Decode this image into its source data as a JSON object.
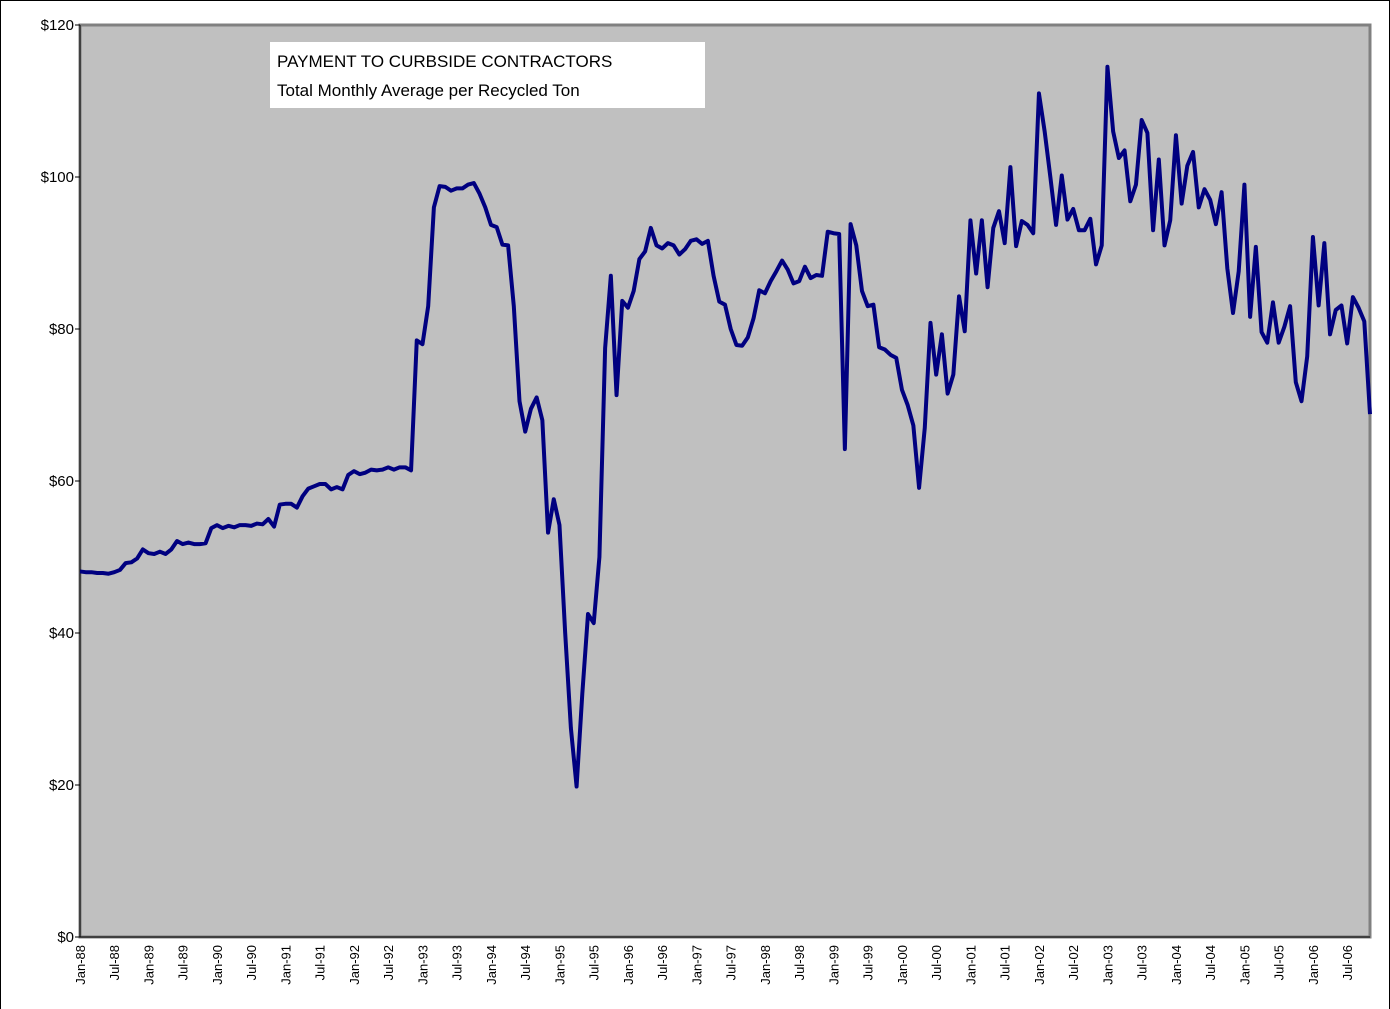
{
  "chart_data": {
    "type": "line",
    "title": "PAYMENT TO CURBSIDE CONTRACTORS",
    "subtitle": "Total Monthly Average per Recycled Ton",
    "categories": [
      "Jan-88",
      null,
      null,
      null,
      null,
      null,
      "Jul-88",
      null,
      null,
      null,
      null,
      null,
      "Jan-89",
      null,
      null,
      null,
      null,
      null,
      "Jul-89",
      null,
      null,
      null,
      null,
      null,
      "Jan-90",
      null,
      null,
      null,
      null,
      null,
      "Jul-90",
      null,
      null,
      null,
      null,
      null,
      "Jan-91",
      null,
      null,
      null,
      null,
      null,
      "Jul-91",
      null,
      null,
      null,
      null,
      null,
      "Jan-92",
      null,
      null,
      null,
      null,
      null,
      "Jul-92",
      null,
      null,
      null,
      null,
      null,
      "Jan-93",
      null,
      null,
      null,
      null,
      null,
      "Jul-93",
      null,
      null,
      null,
      null,
      null,
      "Jan-94",
      null,
      null,
      null,
      null,
      null,
      "Jul-94",
      null,
      null,
      null,
      null,
      null,
      "Jan-95",
      null,
      null,
      null,
      null,
      null,
      "Jul-95",
      null,
      null,
      null,
      null,
      null,
      "Jan-96",
      null,
      null,
      null,
      null,
      null,
      "Jul-96",
      null,
      null,
      null,
      null,
      null,
      "Jan-97",
      null,
      null,
      null,
      null,
      null,
      "Jul-97",
      null,
      null,
      null,
      null,
      null,
      "Jan-98",
      null,
      null,
      null,
      null,
      null,
      "Jul-98",
      null,
      null,
      null,
      null,
      null,
      "Jan-99",
      null,
      null,
      null,
      null,
      null,
      "Jul-99",
      null,
      null,
      null,
      null,
      null,
      "Jan-00",
      null,
      null,
      null,
      null,
      null,
      "Jul-00",
      null,
      null,
      null,
      null,
      null,
      "Jan-01",
      null,
      null,
      null,
      null,
      null,
      "Jul-01",
      null,
      null,
      null,
      null,
      null,
      "Jan-02",
      null,
      null,
      null,
      null,
      null,
      "Jul-02",
      null,
      null,
      null,
      null,
      null,
      "Jan-03",
      null,
      null,
      null,
      null,
      null,
      "Jul-03",
      null,
      null,
      null,
      null,
      null,
      "Jan-04",
      null,
      null,
      null,
      null,
      null,
      "Jul-04",
      null,
      null,
      null,
      null,
      null,
      "Jan-05",
      null,
      null,
      null,
      null,
      null,
      "Jul-05",
      null,
      null,
      null,
      null,
      null,
      "Jan-06",
      null,
      null,
      null,
      null,
      null,
      "Jul-06",
      null,
      null,
      null,
      null
    ],
    "values": [
      48.1,
      48,
      48,
      47.9,
      47.9,
      47.8,
      48,
      48.3,
      49.2,
      49.3,
      49.8,
      51,
      50.5,
      50.4,
      50.7,
      50.4,
      51,
      52.1,
      51.7,
      51.9,
      51.7,
      51.7,
      51.8,
      53.8,
      54.2,
      53.8,
      54.1,
      53.9,
      54.2,
      54.2,
      54.1,
      54.4,
      54.3,
      55,
      54,
      56.9,
      57,
      57,
      56.5,
      58,
      59,
      59.3,
      59.6,
      59.6,
      58.9,
      59.2,
      58.9,
      60.8,
      61.3,
      60.9,
      61.1,
      61.5,
      61.4,
      61.5,
      61.8,
      61.5,
      61.8,
      61.8,
      61.4,
      78.5,
      78,
      83,
      96,
      98.8,
      98.7,
      98.2,
      98.5,
      98.5,
      99,
      99.2,
      97.8,
      96,
      93.7,
      93.4,
      91.1,
      91,
      83,
      70.5,
      66.5,
      69.5,
      71,
      68,
      53.2,
      57.6,
      54.2,
      40,
      27.5,
      19.8,
      32,
      42.5,
      41.3,
      50,
      77.5,
      87,
      71.3,
      83.7,
      82.8,
      85,
      89.2,
      90.2,
      93.3,
      91,
      90.6,
      91.3,
      91,
      89.8,
      90.5,
      91.6,
      91.8,
      91.2,
      91.6,
      87,
      83.6,
      83.2,
      80,
      77.9,
      77.8,
      78.9,
      81.4,
      85.1,
      84.7,
      86.3,
      87.6,
      89,
      87.8,
      86,
      86.3,
      88.2,
      86.7,
      87.1,
      87,
      92.8,
      92.6,
      92.5,
      64.2,
      93.8,
      91,
      85,
      83,
      83.2,
      77.6,
      77.3,
      76.6,
      76.2,
      72,
      70,
      67.3,
      59.1,
      67,
      80.8,
      74,
      79.3,
      71.5,
      74,
      84.3,
      79.7,
      94.3,
      87.3,
      94.3,
      85.5,
      93.3,
      95.5,
      91.3,
      101.3,
      90.9,
      94.2,
      93.7,
      92.6,
      111,
      106,
      100,
      93.7,
      100.2,
      94.4,
      95.8,
      93,
      93,
      94.5,
      88.5,
      91,
      114.5,
      106,
      102.5,
      103.5,
      96.8,
      99,
      107.5,
      105.8,
      93,
      102.3,
      91,
      94.3,
      105.5,
      96.5,
      101.5,
      103.3,
      96,
      98.4,
      97,
      93.8,
      98,
      88,
      82.1,
      87.6,
      99,
      81.6,
      90.8,
      79.6,
      78.2,
      83.5,
      78.2,
      80.3,
      83,
      73,
      70.5,
      76.4,
      92.1,
      83.1,
      91.3,
      79.3,
      82.5,
      83.1,
      78.1,
      84.2,
      82.8,
      81,
      68.8
    ],
    "color": "#000080",
    "ylim": [
      0,
      120
    ],
    "yticks": [
      {
        "value": 0,
        "label": "$0"
      },
      {
        "value": 20,
        "label": "$20"
      },
      {
        "value": 40,
        "label": "$40"
      },
      {
        "value": 60,
        "label": "$60"
      },
      {
        "value": 80,
        "label": "$80"
      },
      {
        "value": 100,
        "label": "$100"
      },
      {
        "value": 120,
        "label": "$120"
      }
    ],
    "grid": false
  }
}
